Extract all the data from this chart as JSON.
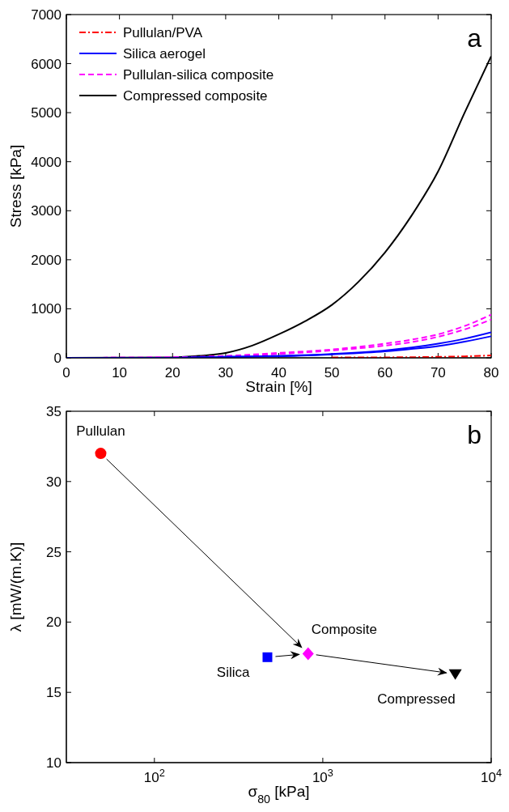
{
  "chart_data": [
    {
      "type": "line",
      "xlabel": "Strain [%]",
      "ylabel": "Stress [kPa]",
      "annotations": [
        "a"
      ],
      "xlim": [
        0,
        80
      ],
      "xticks": [
        0,
        10,
        20,
        30,
        40,
        50,
        60,
        70,
        80
      ],
      "ylim": [
        0,
        7000
      ],
      "yticks": [
        0,
        1000,
        2000,
        3000,
        4000,
        5000,
        6000,
        7000
      ],
      "grid": false,
      "legend": "top left",
      "marker": "none",
      "series": [
        {
          "name": "Pullulan/PVA",
          "color": "#ff0000",
          "line_style": "dashdot",
          "x": [
            50,
            60,
            70,
            75,
            80
          ],
          "values": [
            10,
            10,
            20,
            30,
            50
          ]
        },
        {
          "name": "Silica aerogel",
          "color": "#0000ff",
          "line_style": "solid",
          "x": [
            0,
            20,
            30,
            40,
            50,
            60,
            65,
            70,
            75,
            80
          ],
          "values": [
            0,
            0,
            20,
            40,
            80,
            150,
            210,
            290,
            390,
            520
          ]
        },
        {
          "color": "#0000ff",
          "line_style": "solid",
          "x": [
            0,
            20,
            30,
            40,
            50,
            60,
            65,
            70,
            75,
            80
          ],
          "values": [
            0,
            0,
            20,
            30,
            70,
            130,
            180,
            240,
            330,
            440
          ]
        },
        {
          "name": "Pullulan-silica composite",
          "color": "#ff00ff",
          "line_style": "dashed",
          "x": [
            0,
            20,
            30,
            40,
            50,
            60,
            65,
            70,
            75,
            80
          ],
          "values": [
            0,
            10,
            40,
            100,
            170,
            290,
            370,
            480,
            650,
            880
          ]
        },
        {
          "color": "#ff00ff",
          "line_style": "dashed",
          "x": [
            0,
            20,
            30,
            40,
            50,
            60,
            65,
            70,
            75,
            80
          ],
          "values": [
            0,
            10,
            30,
            80,
            150,
            250,
            320,
            430,
            580,
            780
          ]
        },
        {
          "name": "Compressed composite",
          "color": "#000000",
          "line_style": "solid",
          "x": [
            0,
            20,
            25,
            30,
            35,
            40,
            45,
            50,
            55,
            60,
            65,
            70,
            75,
            80
          ],
          "values": [
            0,
            10,
            40,
            100,
            250,
            480,
            750,
            1080,
            1550,
            2150,
            2900,
            3800,
            5000,
            6150
          ]
        }
      ]
    },
    {
      "type": "scatter",
      "xlabel": "σ$_{80}$ [kPa]",
      "ylabel": "λ [mW/(m.K)]",
      "annotations": [
        "b"
      ],
      "log": "x",
      "xlim": [
        30,
        10000
      ],
      "xticks": [
        {
          "value": 100,
          "label": "10$^{2}$"
        },
        {
          "value": 1000,
          "label": "10$^{3}$"
        },
        {
          "value": 10000,
          "label": "10$^{4}$"
        }
      ],
      "ylim": [
        10,
        35
      ],
      "yticks": [
        10,
        15,
        20,
        25,
        30,
        35
      ],
      "grid": false,
      "series": [
        {
          "name": "Pullulan",
          "color": "#ff0000",
          "marker": "circle",
          "x": [
            48
          ],
          "values": [
            32
          ]
        },
        {
          "name": "Silica",
          "color": "#0000ff",
          "marker": "square",
          "x": [
            469
          ],
          "values": [
            17.5
          ]
        },
        {
          "name": "Composite",
          "color": "#ff00ff",
          "marker": "diamond",
          "x": [
            818
          ],
          "values": [
            17.75
          ]
        },
        {
          "name": "Compressed",
          "color": "#000000",
          "marker": "triangle",
          "x": [
            6120
          ],
          "values": [
            16.3
          ]
        }
      ]
    }
  ]
}
